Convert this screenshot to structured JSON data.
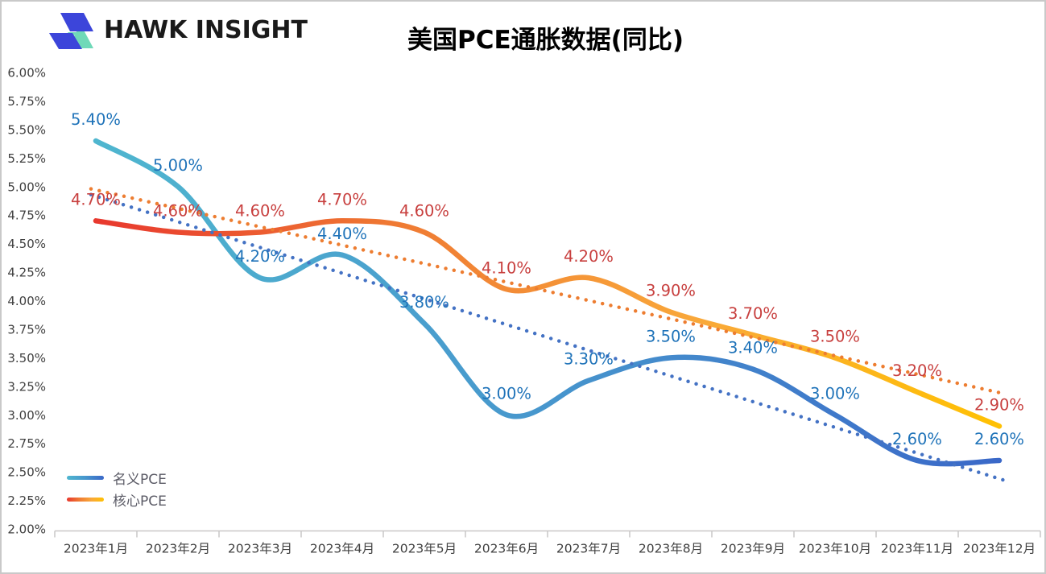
{
  "header": {
    "brand": "HAWK INSIGHT",
    "title": "美国PCE通胀数据(同比)"
  },
  "chart_data": {
    "type": "line",
    "title": "美国PCE通胀数据(同比)",
    "categories": [
      "2023年1月",
      "2023年2月",
      "2023年3月",
      "2023年4月",
      "2023年5月",
      "2023年6月",
      "2023年7月",
      "2023年8月",
      "2023年9月",
      "2023年10月",
      "2023年11月",
      "2023年12月"
    ],
    "series": [
      {
        "name": "名义PCE",
        "slug": "nominal-pce",
        "values": [
          5.4,
          5.0,
          4.2,
          4.4,
          3.8,
          3.0,
          3.3,
          3.5,
          3.4,
          3.0,
          2.6,
          2.6
        ],
        "gradient": [
          "#4FB6CF",
          "#4796CD",
          "#3A68C8"
        ],
        "label_color": "#1F73B9"
      },
      {
        "name": "核心PCE",
        "slug": "core-pce",
        "values": [
          4.7,
          4.6,
          4.6,
          4.7,
          4.6,
          4.1,
          4.2,
          3.9,
          3.7,
          3.5,
          3.2,
          2.9
        ],
        "gradient": [
          "#E8382E",
          "#EF7A33",
          "#F9A83A",
          "#FFC103"
        ],
        "label_color": "#C8403F"
      }
    ],
    "trendlines": [
      {
        "series": "名义PCE",
        "start_value": 4.93,
        "end_value": 2.42,
        "color": "#4472C4",
        "style": "dotted"
      },
      {
        "series": "核心PCE",
        "start_value": 4.98,
        "end_value": 3.18,
        "color": "#ED7D31",
        "style": "dotted"
      }
    ],
    "y_axis": {
      "min": 2.0,
      "max": 6.0,
      "step": 0.25,
      "format": "0.00%",
      "labels": [
        "6.00%",
        "5.75%",
        "5.50%",
        "5.25%",
        "5.00%",
        "4.75%",
        "4.50%",
        "4.25%",
        "4.00%",
        "3.75%",
        "3.50%",
        "3.25%",
        "3.00%",
        "2.75%",
        "2.50%",
        "2.25%",
        "2.00%"
      ]
    },
    "grid": false,
    "value_label_format": "0.00%",
    "legend": {
      "position": "bottom-left",
      "entries": [
        "名义PCE",
        "核心PCE"
      ]
    }
  },
  "colors": {
    "background": "#FFFFFF",
    "border": "#C9C9C9",
    "title": "#000000",
    "brand_text": "#1A1A1A",
    "axis_text": "#404040",
    "axis_line": "#C9C7C7",
    "legend_text": "#5B5B66",
    "logo_blue": "#3C45DA",
    "logo_mint": "#6FD9B8"
  }
}
